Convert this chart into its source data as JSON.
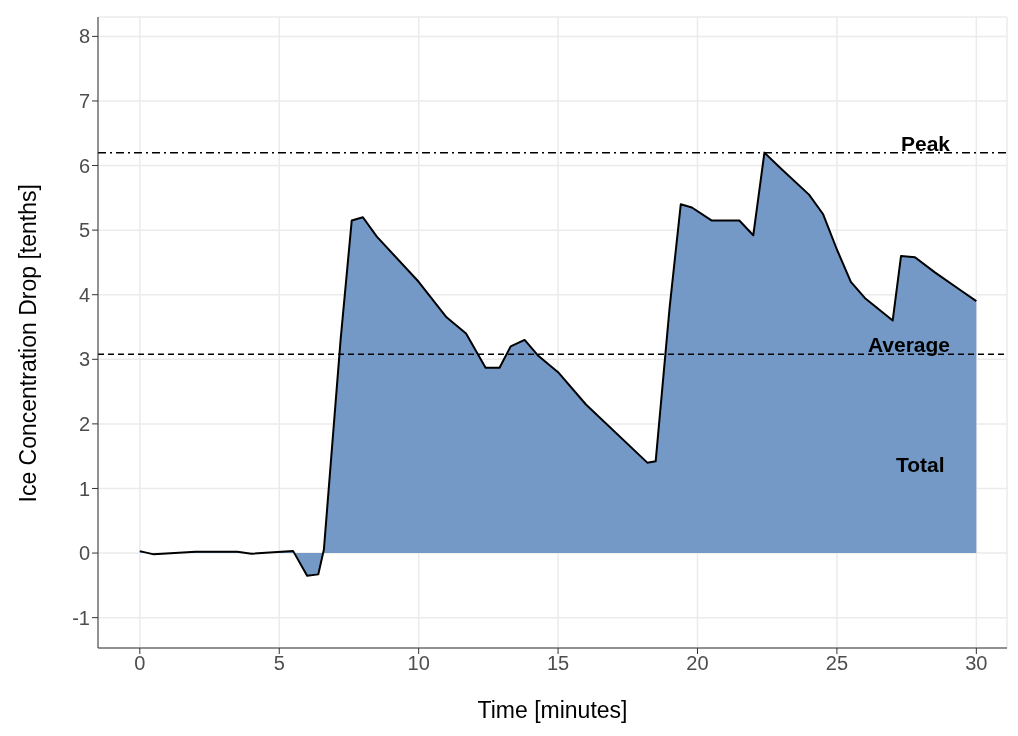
{
  "chart_data": {
    "type": "area",
    "xlabel": "Time [minutes]",
    "ylabel": "Ice Concentration Drop [tenths]",
    "x": [
      0,
      0.5,
      2,
      3.5,
      4,
      5.5,
      6,
      6.4,
      6.6,
      7.2,
      7.6,
      8,
      8.5,
      10,
      11,
      11.7,
      12.4,
      12.9,
      13.3,
      13.8,
      14.3,
      15,
      16,
      18.2,
      18.5,
      19,
      19.4,
      19.8,
      20.5,
      21.5,
      22,
      22.4,
      23,
      24,
      24.5,
      25,
      25.5,
      26,
      27,
      27.3,
      27.8,
      28.5,
      29.5,
      30
    ],
    "series": [
      {
        "color": "#7499c6",
        "values": [
          0.03,
          -0.02,
          0.02,
          0.02,
          -0.01,
          0.03,
          -0.35,
          -0.33,
          0.05,
          3.3,
          5.15,
          5.2,
          4.9,
          4.2,
          3.65,
          3.4,
          2.87,
          2.87,
          3.2,
          3.3,
          3.05,
          2.8,
          2.3,
          1.4,
          1.42,
          3.8,
          5.4,
          5.35,
          5.15,
          5.15,
          4.92,
          6.2,
          5.95,
          5.55,
          5.25,
          4.7,
          4.2,
          3.95,
          3.6,
          4.6,
          4.58,
          4.35,
          4.05,
          3.9
        ]
      }
    ],
    "xlim": [
      -1.5,
      31.1
    ],
    "xticks": [
      0,
      5,
      10,
      15,
      20,
      25,
      30
    ],
    "ylim": [
      -1.47,
      8.3
    ],
    "yticks": [
      -1,
      0,
      1,
      2,
      3,
      4,
      5,
      6,
      7,
      8
    ],
    "grid": true,
    "ref_lines": [
      {
        "axis": "y",
        "value": 6.2,
        "label": "Peak",
        "line_style": "dashdot"
      },
      {
        "axis": "y",
        "value": 3.08,
        "label": "Average",
        "line_style": "dashed"
      }
    ],
    "annotations": [
      "Total"
    ]
  }
}
